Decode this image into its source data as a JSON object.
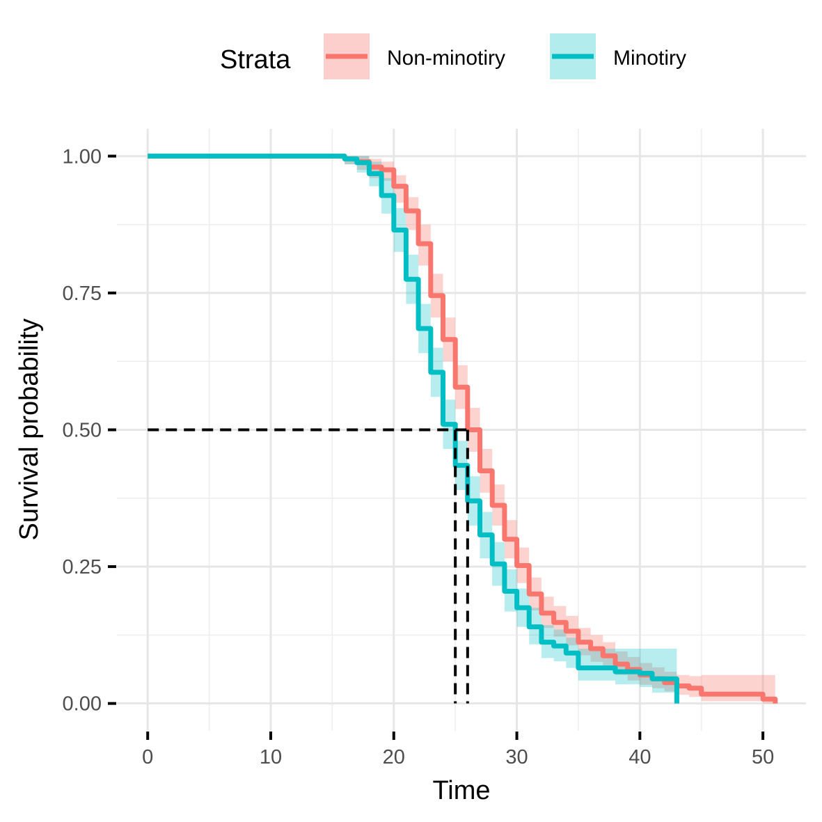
{
  "chart_data": {
    "type": "line",
    "subtype": "kaplan-meier step curves with confidence bands",
    "title": "",
    "xlabel": "Time",
    "ylabel": "Survival probability",
    "xlim": [
      -2.5,
      53.5
    ],
    "ylim": [
      -0.05,
      1.05
    ],
    "x_ticks": [
      0,
      10,
      20,
      30,
      40,
      50
    ],
    "x_tick_labels": [
      "0",
      "10",
      "20",
      "30",
      "40",
      "50"
    ],
    "y_ticks": [
      0,
      0.25,
      0.5,
      0.75,
      1.0
    ],
    "y_tick_labels": [
      "0.00",
      "0.25",
      "0.50",
      "0.75",
      "1.00"
    ],
    "grid": true,
    "legend": {
      "title": "Strata",
      "position": "top"
    },
    "series": [
      {
        "name": "Non-minotiry",
        "color": "#F8766D",
        "x": [
          0,
          16,
          17,
          18,
          19,
          20,
          21,
          22,
          23,
          24,
          25,
          26,
          27,
          28,
          29,
          30,
          31,
          32,
          33,
          34,
          35,
          36,
          37,
          38,
          39,
          40,
          41,
          42,
          43,
          44,
          45,
          50,
          51
        ],
        "y": [
          1.0,
          0.995,
          0.99,
          0.98,
          0.975,
          0.945,
          0.9,
          0.84,
          0.745,
          0.665,
          0.578,
          0.5,
          0.425,
          0.362,
          0.3,
          0.252,
          0.2,
          0.165,
          0.148,
          0.132,
          0.112,
          0.1,
          0.087,
          0.072,
          0.062,
          0.052,
          0.045,
          0.038,
          0.032,
          0.028,
          0.017,
          0.008,
          0.0
        ],
        "lower": [
          1.0,
          0.985,
          0.975,
          0.96,
          0.955,
          0.915,
          0.865,
          0.8,
          0.705,
          0.625,
          0.538,
          0.46,
          0.385,
          0.325,
          0.265,
          0.22,
          0.17,
          0.138,
          0.122,
          0.106,
          0.088,
          0.076,
          0.064,
          0.052,
          0.042,
          0.034,
          0.028,
          0.022,
          0.016,
          0.012,
          0.004,
          0.0,
          0.0
        ],
        "upper": [
          1.0,
          1.0,
          1.0,
          0.995,
          0.99,
          0.965,
          0.925,
          0.875,
          0.785,
          0.705,
          0.618,
          0.54,
          0.465,
          0.4,
          0.335,
          0.285,
          0.23,
          0.195,
          0.178,
          0.16,
          0.138,
          0.125,
          0.112,
          0.095,
          0.085,
          0.074,
          0.066,
          0.058,
          0.052,
          0.05,
          0.052,
          0.052,
          0.052
        ]
      },
      {
        "name": "Minotiry",
        "color": "#00BFC4",
        "x": [
          0,
          16,
          17,
          18,
          19,
          20,
          21,
          22,
          23,
          24,
          25,
          26,
          27,
          28,
          29,
          30,
          31,
          32,
          33,
          34,
          35,
          36,
          37,
          38,
          39,
          40,
          41,
          42,
          43
        ],
        "y": [
          1.0,
          0.995,
          0.988,
          0.968,
          0.928,
          0.865,
          0.775,
          0.685,
          0.605,
          0.51,
          0.435,
          0.37,
          0.308,
          0.255,
          0.205,
          0.175,
          0.14,
          0.112,
          0.105,
          0.092,
          0.065,
          0.065,
          0.065,
          0.058,
          0.058,
          0.055,
          0.045,
          0.045,
          0.0
        ],
        "lower": [
          1.0,
          0.985,
          0.97,
          0.945,
          0.895,
          0.825,
          0.73,
          0.64,
          0.56,
          0.465,
          0.39,
          0.325,
          0.265,
          0.215,
          0.168,
          0.14,
          0.108,
          0.083,
          0.077,
          0.065,
          0.042,
          0.042,
          0.042,
          0.035,
          0.035,
          0.03,
          0.02,
          0.02,
          0.0
        ],
        "upper": [
          1.0,
          1.0,
          1.0,
          0.99,
          0.96,
          0.905,
          0.82,
          0.73,
          0.65,
          0.555,
          0.48,
          0.415,
          0.35,
          0.295,
          0.245,
          0.21,
          0.175,
          0.143,
          0.135,
          0.12,
          0.1,
          0.1,
          0.1,
          0.1,
          0.1,
          0.1,
          0.1,
          0.1,
          0.1
        ]
      }
    ],
    "median_lines": {
      "y": 0.5,
      "x": [
        25,
        26
      ]
    }
  }
}
